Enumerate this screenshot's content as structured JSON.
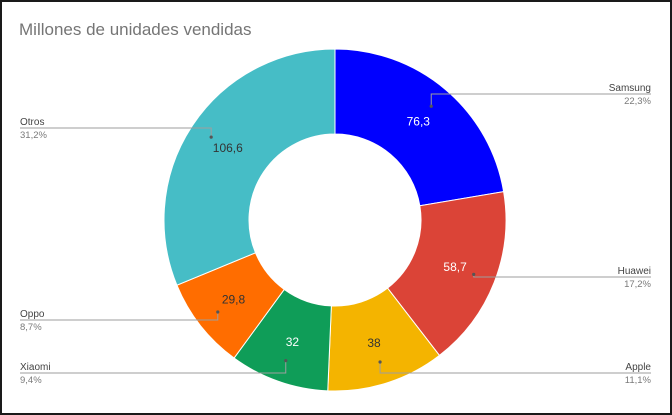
{
  "chart_data": {
    "type": "pie",
    "subtype": "donut",
    "title": "Millones de unidades vendidas",
    "legend_placement": "callouts",
    "categories": [
      "Samsung",
      "Huawei",
      "Apple",
      "Xiaomi",
      "Oppo",
      "Otros"
    ],
    "values": [
      76.3,
      58.7,
      38,
      32,
      29.8,
      106.6
    ],
    "value_labels": [
      "76,3",
      "58,7",
      "38",
      "32",
      "29,8",
      "106,6"
    ],
    "percent_labels": [
      "22,3%",
      "17,2%",
      "11,1%",
      "9,4%",
      "8,7%",
      "31,2%"
    ],
    "colors": [
      "#0000ff",
      "#db4437",
      "#f4b400",
      "#0f9d58",
      "#ff6d00",
      "#46bdc6"
    ],
    "label_text_colors": [
      "#ffffff",
      "#ffffff",
      "#333333",
      "#ffffff",
      "#333333",
      "#333333"
    ]
  }
}
